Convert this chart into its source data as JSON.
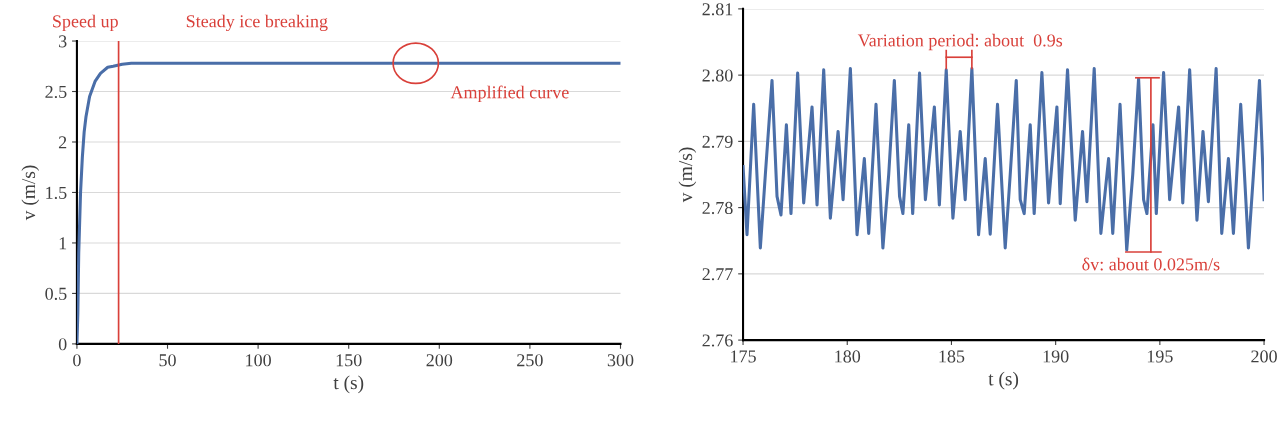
{
  "chart_data": [
    {
      "type": "line",
      "xlabel": "t (s)",
      "ylabel": "v (m/s)",
      "xlim": [
        0,
        300
      ],
      "ylim": [
        0,
        3
      ],
      "xticks": [
        0,
        50,
        100,
        150,
        200,
        250,
        300
      ],
      "yticks": [
        0,
        0.5,
        1,
        1.5,
        2,
        2.5,
        3
      ],
      "grid": "y",
      "legend": false,
      "marker": "none",
      "line_style": "solid",
      "series": [
        {
          "color": "#4a6ea8",
          "x": [
            0,
            0.5,
            1,
            2,
            3,
            4,
            5,
            7,
            10,
            13,
            17,
            20,
            25,
            30,
            50,
            75,
            100,
            125,
            150,
            175,
            200,
            225,
            250,
            275,
            300
          ],
          "values": [
            0,
            0.3,
            0.9,
            1.5,
            1.85,
            2.1,
            2.25,
            2.45,
            2.6,
            2.68,
            2.74,
            2.75,
            2.77,
            2.78,
            2.78,
            2.78,
            2.78,
            2.78,
            2.78,
            2.78,
            2.78,
            2.78,
            2.78,
            2.78,
            2.78
          ]
        }
      ],
      "ref_lines": [
        {
          "axis": "x",
          "value": 23,
          "label": "Speed up",
          "color": "#d9403a"
        }
      ],
      "annotations": [
        "Steady ice breaking",
        {
          "text": "Amplified curve",
          "x": 187,
          "y": 2.78
        }
      ]
    },
    {
      "type": "line",
      "xlabel": "t (s)",
      "ylabel": "v (m/s)",
      "xlim": [
        175,
        200
      ],
      "ylim": [
        2.76,
        2.81
      ],
      "xticks": [
        175,
        180,
        185,
        190,
        195,
        200
      ],
      "yticks": [
        {
          "value": 2.76,
          "label": "2.76"
        },
        {
          "value": 2.77,
          "label": "2.77"
        },
        {
          "value": 2.78,
          "label": "2.78"
        },
        {
          "value": 2.79,
          "label": "2.79"
        },
        {
          "value": 2.8,
          "label": "2.80"
        },
        {
          "value": 2.81,
          "label": "2.81"
        }
      ],
      "grid": "y",
      "legend": false,
      "marker": "none",
      "line_style": "solid",
      "series": [
        {
          "color": "#4a6ea8",
          "x": [
            175,
            175.19,
            175.51,
            175.83,
            176.07,
            176.39,
            176.63,
            176.82,
            177.08,
            177.3,
            177.62,
            177.91,
            178.31,
            178.55,
            178.87,
            179.19,
            179.56,
            179.8,
            180.15,
            180.47,
            180.82,
            181.03,
            181.38,
            181.71,
            181.99,
            182.26,
            182.51,
            182.67,
            182.95,
            183.14,
            183.47,
            183.75,
            184.18,
            184.42,
            184.75,
            185.07,
            185.42,
            185.66,
            185.98,
            186.3,
            186.62,
            186.86,
            187.21,
            187.58,
            187.82,
            188.11,
            188.3,
            188.49,
            188.78,
            188.97,
            189.34,
            189.66,
            190.06,
            190.22,
            190.57,
            190.94,
            191.29,
            191.5,
            191.85,
            192.17,
            192.54,
            192.74,
            193.09,
            193.41,
            193.7,
            193.98,
            194.22,
            194.38,
            194.67,
            194.83,
            195.18,
            195.47,
            195.9,
            196.1,
            196.43,
            196.78,
            197.07,
            197.33,
            197.7,
            197.97,
            198.29,
            198.53,
            198.88,
            199.25,
            199.49,
            199.78,
            200
          ],
          "values": [
            2.7862,
            2.7759,
            2.7956,
            2.7739,
            2.785,
            2.7992,
            2.7817,
            2.7789,
            2.7925,
            2.7791,
            2.8003,
            2.7807,
            2.7952,
            2.7804,
            2.8008,
            2.7784,
            2.7915,
            2.7812,
            2.801,
            2.7759,
            2.7874,
            2.7761,
            2.7956,
            2.7739,
            2.785,
            2.7992,
            2.7817,
            2.7791,
            2.7925,
            2.7791,
            2.8003,
            2.7812,
            2.7952,
            2.7804,
            2.8008,
            2.7784,
            2.7915,
            2.7812,
            2.801,
            2.7759,
            2.7874,
            2.776,
            2.7956,
            2.7739,
            2.785,
            2.7992,
            2.7812,
            2.7791,
            2.7925,
            2.7791,
            2.8004,
            2.7807,
            2.7952,
            2.7806,
            2.8008,
            2.7781,
            2.7915,
            2.7809,
            2.801,
            2.7761,
            2.7874,
            2.7761,
            2.7956,
            2.7736,
            2.785,
            2.7995,
            2.7812,
            2.7791,
            2.7925,
            2.7791,
            2.8004,
            2.7812,
            2.7952,
            2.7807,
            2.8008,
            2.7781,
            2.7915,
            2.7809,
            2.801,
            2.7761,
            2.7874,
            2.7761,
            2.7956,
            2.7739,
            2.785,
            2.7992,
            2.7812
          ]
        },
        {
          "color": "#d9403a",
          "x": [
            184.75,
            184.75
          ],
          "values": [
            2.8037,
            2.801
          ]
        },
        {
          "color": "#d9403a",
          "x": [
            184.75,
            185.98
          ],
          "values": [
            2.8027,
            2.8027
          ]
        },
        {
          "color": "#d9403a",
          "x": [
            185.98,
            185.98
          ],
          "values": [
            2.8037,
            2.801
          ]
        },
        {
          "color": "#d9403a",
          "x": [
            193.85,
            194.96
          ],
          "values": [
            2.7996,
            2.7996
          ]
        },
        {
          "color": "#d9403a",
          "x": [
            194.57,
            194.57
          ],
          "values": [
            2.7996,
            2.7733
          ]
        },
        {
          "color": "#d9403a",
          "x": [
            193.37,
            195.05
          ],
          "values": [
            2.7733,
            2.7733
          ]
        }
      ],
      "annotations": [
        "Variation period: about  0.9s",
        {
          "text": "δv: about 0.025m/s",
          "x": 194.57,
          "y": 2.7733
        }
      ]
    }
  ]
}
